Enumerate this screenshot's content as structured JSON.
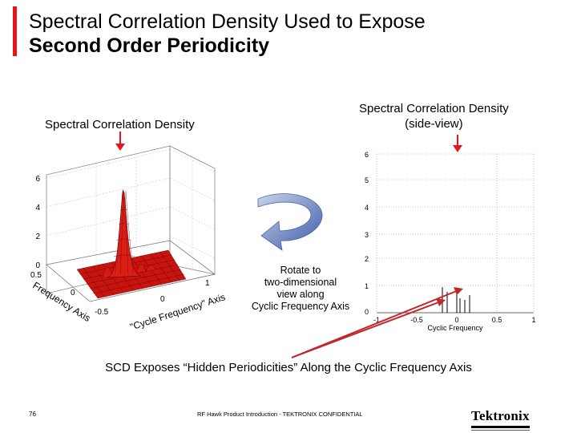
{
  "slide": {
    "title_line1": "Spectral Correlation Density Used to Expose",
    "title_line2": "Second Order Periodicity",
    "accent_color": "#e8161c"
  },
  "left_plot": {
    "label": "Spectral Correlation Density",
    "z_ticks": [
      "6",
      "4",
      "2",
      "0"
    ],
    "freq_axis_ticks": [
      "0.5",
      "0",
      "-0.5"
    ],
    "freq_axis_label": "Frequency Axis",
    "cyclic_axis_ticks": [
      "1",
      "0"
    ],
    "cyclic_axis_label": "\"Cycle Frequency\" Axis"
  },
  "right_plot": {
    "label_line1": "Spectral Correlation Density",
    "label_line2": "(side-view)",
    "y_ticks": [
      "6",
      "5",
      "4",
      "3",
      "2",
      "1",
      "0"
    ],
    "x_ticks": [
      "-1",
      "-0.5",
      "0",
      "0.5",
      "1"
    ],
    "x_label": "Cyclic Frequency"
  },
  "rotate_note": {
    "line1": "Rotate to",
    "line2": "two-dimensional",
    "line3": "view along",
    "line4": "Cyclic Frequency Axis"
  },
  "caption": "SCD Exposes “Hidden Periodicities” Along the Cyclic Frequency Axis",
  "footer": {
    "page_number": "76",
    "confidential_text": "RF Hawk Product Introduction - TEKTRONIX CONFIDENTIAL",
    "logo_text": "Tektronix"
  }
}
